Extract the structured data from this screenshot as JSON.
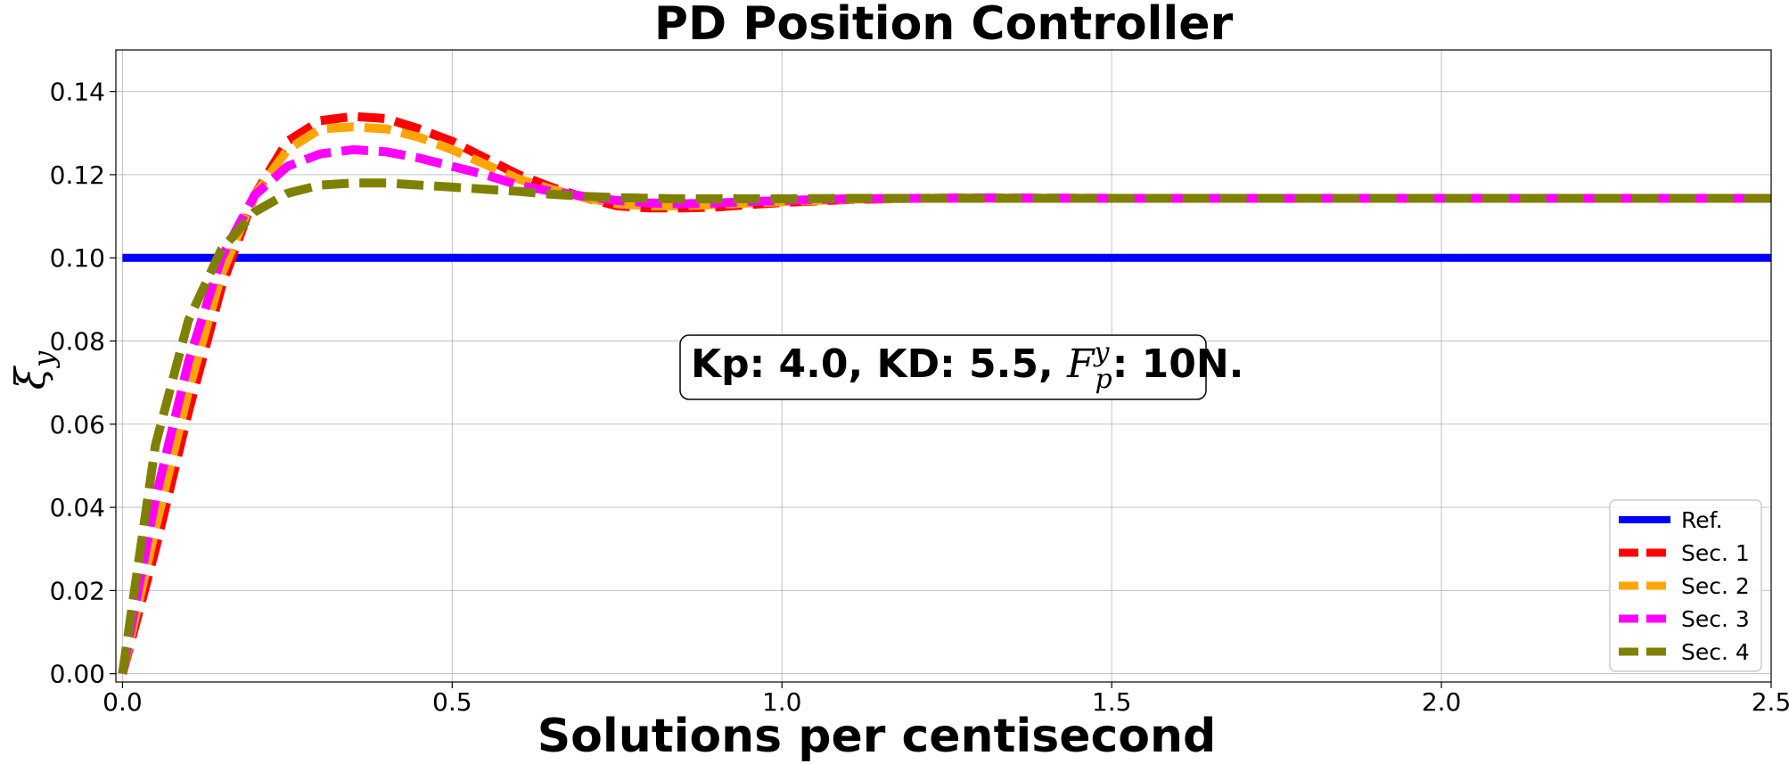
{
  "chart_data": {
    "type": "line",
    "title": "PD Position Controller",
    "xlabel": "Solutions per centisecond",
    "ylabel": "ξ",
    "ylabel_sub": "y",
    "xlim": [
      -0.01,
      2.5
    ],
    "ylim": [
      -0.002,
      0.15
    ],
    "xticks": [
      0.0,
      0.5,
      1.0,
      1.5,
      2.0,
      2.5
    ],
    "xtick_labels": [
      "0.0",
      "0.5",
      "1.0",
      "1.5",
      "2.0",
      "2.5"
    ],
    "yticks": [
      0.0,
      0.02,
      0.04,
      0.06,
      0.08,
      0.1,
      0.12,
      0.14
    ],
    "ytick_labels": [
      "0.00",
      "0.02",
      "0.04",
      "0.06",
      "0.08",
      "0.10",
      "0.12",
      "0.14"
    ],
    "grid": true,
    "legend_position": "lower-right",
    "annotation": {
      "prefix": "Kp: 4.0, KD: 5.5, ",
      "symbol": "F",
      "symbol_sup": "y",
      "symbol_sub": "p",
      "suffix": ": 10N."
    },
    "x": [
      0.0,
      0.05,
      0.1,
      0.15,
      0.2,
      0.25,
      0.3,
      0.35,
      0.4,
      0.45,
      0.5,
      0.55,
      0.6,
      0.65,
      0.7,
      0.75,
      0.8,
      0.85,
      0.9,
      0.95,
      1.0,
      1.1,
      1.2,
      1.3,
      1.5,
      2.0,
      2.5
    ],
    "series": [
      {
        "name": "Ref.",
        "color": "#0000ff",
        "style": "solid",
        "values": [
          0.1,
          0.1,
          0.1,
          0.1,
          0.1,
          0.1,
          0.1,
          0.1,
          0.1,
          0.1,
          0.1,
          0.1,
          0.1,
          0.1,
          0.1,
          0.1,
          0.1,
          0.1,
          0.1,
          0.1,
          0.1,
          0.1,
          0.1,
          0.1,
          0.1,
          0.1,
          0.1
        ]
      },
      {
        "name": "Sec. 1",
        "color": "#ff0000",
        "style": "dashed",
        "values": [
          0.0,
          0.03,
          0.063,
          0.093,
          0.115,
          0.128,
          0.133,
          0.134,
          0.1335,
          0.131,
          0.128,
          0.124,
          0.12,
          0.117,
          0.1145,
          0.1125,
          0.112,
          0.112,
          0.1122,
          0.1128,
          0.1133,
          0.114,
          0.1143,
          0.1144,
          0.1143,
          0.1143,
          0.1143
        ]
      },
      {
        "name": "Sec. 2",
        "color": "#ffa500",
        "style": "dashed",
        "values": [
          0.0,
          0.035,
          0.068,
          0.096,
          0.115,
          0.126,
          0.131,
          0.1315,
          0.131,
          0.129,
          0.126,
          0.1225,
          0.119,
          0.1165,
          0.1145,
          0.113,
          0.1125,
          0.1125,
          0.1128,
          0.1132,
          0.1135,
          0.1141,
          0.1143,
          0.1144,
          0.1143,
          0.1143,
          0.1143
        ]
      },
      {
        "name": "Sec. 3",
        "color": "#ff00ff",
        "style": "dashed",
        "values": [
          0.0,
          0.042,
          0.075,
          0.1,
          0.115,
          0.122,
          0.125,
          0.126,
          0.1255,
          0.124,
          0.122,
          0.12,
          0.1175,
          0.116,
          0.1148,
          0.1138,
          0.1132,
          0.113,
          0.1132,
          0.1135,
          0.1138,
          0.1142,
          0.1143,
          0.1144,
          0.1143,
          0.1143,
          0.1143
        ]
      },
      {
        "name": "Sec. 4",
        "color": "#808000",
        "style": "dashed",
        "values": [
          0.0,
          0.055,
          0.085,
          0.102,
          0.111,
          0.1155,
          0.1175,
          0.118,
          0.118,
          0.1175,
          0.117,
          0.1165,
          0.116,
          0.1153,
          0.1148,
          0.1145,
          0.1143,
          0.1142,
          0.1142,
          0.1142,
          0.1142,
          0.1143,
          0.1143,
          0.1143,
          0.1143,
          0.1143,
          0.1143
        ]
      }
    ]
  }
}
